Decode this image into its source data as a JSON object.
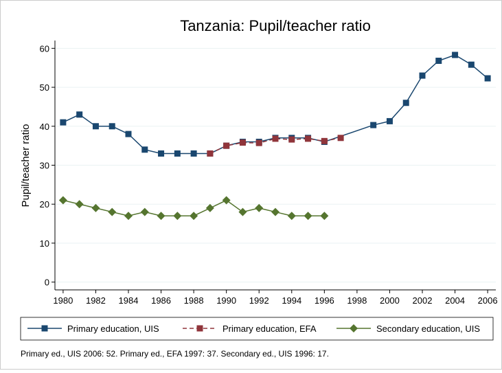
{
  "chart_data": {
    "type": "line",
    "title": "Tanzania: Pupil/teacher ratio",
    "ylabel": "Pupil/teacher ratio",
    "note": "Primary ed., UIS 2006: 52. Primary ed., EFA 1997: 37. Secondary ed., UIS 1996: 17.",
    "xlim": [
      1979.5,
      2006.5
    ],
    "xticks": [
      1980,
      1982,
      1984,
      1986,
      1988,
      1990,
      1992,
      1994,
      1996,
      1998,
      2000,
      2002,
      2004,
      2006
    ],
    "ylim": [
      -2,
      62
    ],
    "yticks": [
      0,
      10,
      20,
      30,
      40,
      50,
      60
    ],
    "grid": true,
    "legend": "bottom",
    "series": [
      {
        "name": "Primary education, UIS",
        "color": "#1a476f",
        "marker": "square",
        "dash": false,
        "x": [
          1980,
          1981,
          1982,
          1983,
          1984,
          1985,
          1986,
          1987,
          1988,
          1989,
          1990,
          1991,
          1992,
          1993,
          1994,
          1995,
          1996,
          1999,
          2000,
          2001,
          2002,
          2003,
          2004,
          2005,
          2006
        ],
        "values": [
          41,
          43,
          40,
          40,
          38,
          34,
          33,
          33,
          33,
          33,
          35,
          36,
          36,
          37,
          37,
          37,
          36,
          40.3,
          41.3,
          46,
          53,
          56.8,
          58.3,
          55.8,
          52.3
        ]
      },
      {
        "name": "Primary education, EFA",
        "color": "#90353b",
        "marker": "square",
        "dash": true,
        "x": [
          1989,
          1990,
          1991,
          1992,
          1993,
          1994,
          1995,
          1996,
          1997
        ],
        "values": [
          33,
          35,
          35.8,
          35.7,
          36.8,
          36.6,
          36.8,
          36.2,
          37
        ]
      },
      {
        "name": "Secondary education, UIS",
        "color": "#55752f",
        "marker": "diamond",
        "dash": false,
        "x": [
          1980,
          1981,
          1982,
          1983,
          1984,
          1985,
          1986,
          1987,
          1988,
          1989,
          1990,
          1991,
          1992,
          1993,
          1994,
          1995,
          1996
        ],
        "values": [
          21,
          20,
          19,
          18,
          17,
          18,
          17,
          17,
          17,
          19,
          21,
          18,
          19,
          18,
          17,
          17,
          17
        ]
      }
    ]
  }
}
